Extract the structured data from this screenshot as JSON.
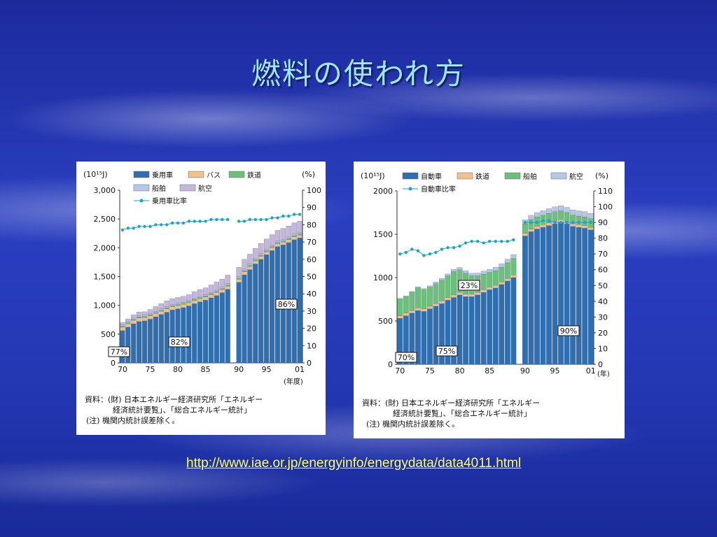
{
  "slide": {
    "title": "燃料の使われ方",
    "link": "http://www.iae.or.jp/energyinfo/energydata/data4011.html"
  },
  "chart_data": [
    {
      "type": "bar",
      "stacked": true,
      "y_unit_label": "(10¹⁵J)",
      "y2_unit_label": "(%)",
      "x_unit_label": "(年度)",
      "ylim": [
        0,
        3000
      ],
      "y2lim": [
        0,
        100
      ],
      "yticks": [
        "3,000",
        "2,500",
        "2,000",
        "1,500",
        "1,000",
        "500",
        "0"
      ],
      "y2ticks": [
        "100",
        "90",
        "80",
        "70",
        "60",
        "50",
        "40",
        "30",
        "20",
        "10",
        "0"
      ],
      "xticks": [
        "70",
        "75",
        "80",
        "85",
        "90",
        "95",
        "01"
      ],
      "colors": {
        "乗用車": "#2e6fb3",
        "バス": "#f3c08a",
        "鉄道": "#6cc17a",
        "船舶": "#b8c7e6",
        "航空": "#c7b6dc",
        "line": "#1aa6c9"
      },
      "years": [
        70,
        71,
        72,
        73,
        74,
        75,
        76,
        77,
        78,
        79,
        80,
        81,
        82,
        83,
        84,
        85,
        86,
        87,
        88,
        89,
        90,
        91,
        92,
        93,
        94,
        95,
        96,
        97,
        98,
        99,
        100,
        101
      ],
      "series": [
        {
          "name": "乗用車",
          "values": [
            560,
            620,
            680,
            720,
            730,
            760,
            800,
            840,
            880,
            920,
            940,
            960,
            990,
            1030,
            1060,
            1090,
            1130,
            1170,
            1220,
            1280,
            1400,
            1530,
            1620,
            1720,
            1800,
            1880,
            1950,
            2020,
            2050,
            2090,
            2140,
            2170
          ]
        },
        {
          "name": "バス",
          "values": [
            60,
            60,
            60,
            60,
            58,
            58,
            58,
            58,
            58,
            56,
            56,
            56,
            55,
            55,
            55,
            54,
            54,
            54,
            54,
            54,
            52,
            52,
            52,
            52,
            52,
            50,
            50,
            50,
            50,
            50,
            50,
            50
          ]
        },
        {
          "name": "鉄道",
          "values": [
            20,
            20,
            20,
            20,
            20,
            20,
            20,
            20,
            20,
            20,
            20,
            20,
            20,
            20,
            20,
            20,
            20,
            20,
            20,
            20,
            22,
            22,
            22,
            22,
            22,
            22,
            22,
            22,
            22,
            22,
            22,
            22
          ]
        },
        {
          "name": "船舶",
          "values": [
            20,
            20,
            20,
            20,
            20,
            20,
            20,
            20,
            20,
            20,
            20,
            20,
            20,
            20,
            20,
            20,
            20,
            20,
            20,
            20,
            25,
            25,
            25,
            25,
            25,
            25,
            25,
            25,
            25,
            25,
            25,
            25
          ]
        },
        {
          "name": "航空",
          "values": [
            40,
            45,
            55,
            65,
            60,
            70,
            80,
            90,
            100,
            100,
            100,
            100,
            100,
            110,
            120,
            120,
            130,
            140,
            140,
            150,
            160,
            170,
            170,
            170,
            175,
            175,
            180,
            185,
            190,
            190,
            195,
            195
          ]
        },
        {
          "name": "乗用車比率",
          "values": [
            77,
            78,
            78,
            79,
            79,
            79,
            80,
            80,
            80,
            81,
            81,
            81,
            82,
            82,
            82,
            82,
            83,
            83,
            83,
            83,
            82,
            82,
            83,
            83,
            83,
            83,
            84,
            84,
            85,
            85,
            86,
            86
          ]
        }
      ],
      "annotations": [
        "77%",
        "82%",
        "86%"
      ],
      "source_lines": [
        "資料：(財) 日本エネルギー経済研究所「エネルギー",
        "経済統計要覧」、「総合エネルギー統計」",
        "(注) 機関内統計誤差除く。"
      ]
    },
    {
      "type": "bar",
      "stacked": true,
      "y_unit_label": "(10¹⁵J)",
      "y2_unit_label": "(%)",
      "x_unit_label": "(年)",
      "ylim": [
        0,
        2000
      ],
      "y2lim": [
        0,
        110
      ],
      "yticks": [
        "2000",
        "1500",
        "1000",
        "500",
        "0"
      ],
      "y2ticks": [
        "110",
        "100",
        "90",
        "80",
        "70",
        "60",
        "50",
        "40",
        "30",
        "20",
        "10",
        "0"
      ],
      "xticks": [
        "70",
        "75",
        "80",
        "85",
        "90",
        "95",
        "01"
      ],
      "colors": {
        "自動車": "#2e6fb3",
        "鉄道": "#f3c08a",
        "船舶": "#6cc17a",
        "航空": "#b8c7e6",
        "line": "#1aa6c9"
      },
      "years": [
        70,
        71,
        72,
        73,
        74,
        75,
        76,
        77,
        78,
        79,
        80,
        81,
        82,
        83,
        84,
        85,
        86,
        87,
        88,
        89,
        90,
        91,
        92,
        93,
        94,
        95,
        96,
        97,
        98,
        99,
        100,
        101
      ],
      "series": [
        {
          "name": "自動車",
          "values": [
            530,
            560,
            590,
            620,
            610,
            640,
            670,
            700,
            740,
            770,
            800,
            780,
            780,
            800,
            830,
            860,
            880,
            920,
            960,
            1000,
            1480,
            1530,
            1560,
            1580,
            1600,
            1620,
            1640,
            1620,
            1590,
            1580,
            1570,
            1550
          ]
        },
        {
          "name": "鉄道",
          "values": [
            30,
            30,
            30,
            30,
            30,
            30,
            30,
            30,
            30,
            30,
            30,
            30,
            30,
            30,
            30,
            30,
            30,
            30,
            30,
            30,
            30,
            30,
            30,
            30,
            30,
            30,
            30,
            30,
            30,
            30,
            30,
            30
          ]
        },
        {
          "name": "船舶",
          "values": [
            190,
            190,
            210,
            230,
            220,
            220,
            230,
            240,
            250,
            270,
            260,
            240,
            210,
            190,
            180,
            170,
            170,
            170,
            180,
            190,
            110,
            110,
            110,
            110,
            110,
            110,
            100,
            100,
            100,
            100,
            100,
            100
          ]
        },
        {
          "name": "航空",
          "values": [
            10,
            10,
            12,
            14,
            14,
            16,
            18,
            20,
            22,
            24,
            26,
            28,
            30,
            32,
            34,
            36,
            38,
            40,
            42,
            44,
            46,
            48,
            50,
            52,
            54,
            56,
            58,
            60,
            60,
            60,
            60,
            60
          ]
        },
        {
          "name": "自動車比率",
          "values": [
            70,
            71,
            73,
            72,
            69,
            70,
            71,
            73,
            74,
            74,
            75,
            77,
            78,
            78,
            77,
            78,
            78,
            78,
            78,
            79,
            90,
            90,
            90,
            91,
            91,
            90,
            90,
            90,
            90,
            90,
            90,
            90
          ]
        }
      ],
      "annotations": [
        "70%",
        "75%",
        "23%",
        "90%"
      ],
      "source_lines": [
        "資料：(財) 日本エネルギー経済研究所「エネルギー",
        "経済統計要覧」、「総合エネルギー統計」",
        "(注) 機関内統計誤差除く。"
      ]
    }
  ]
}
